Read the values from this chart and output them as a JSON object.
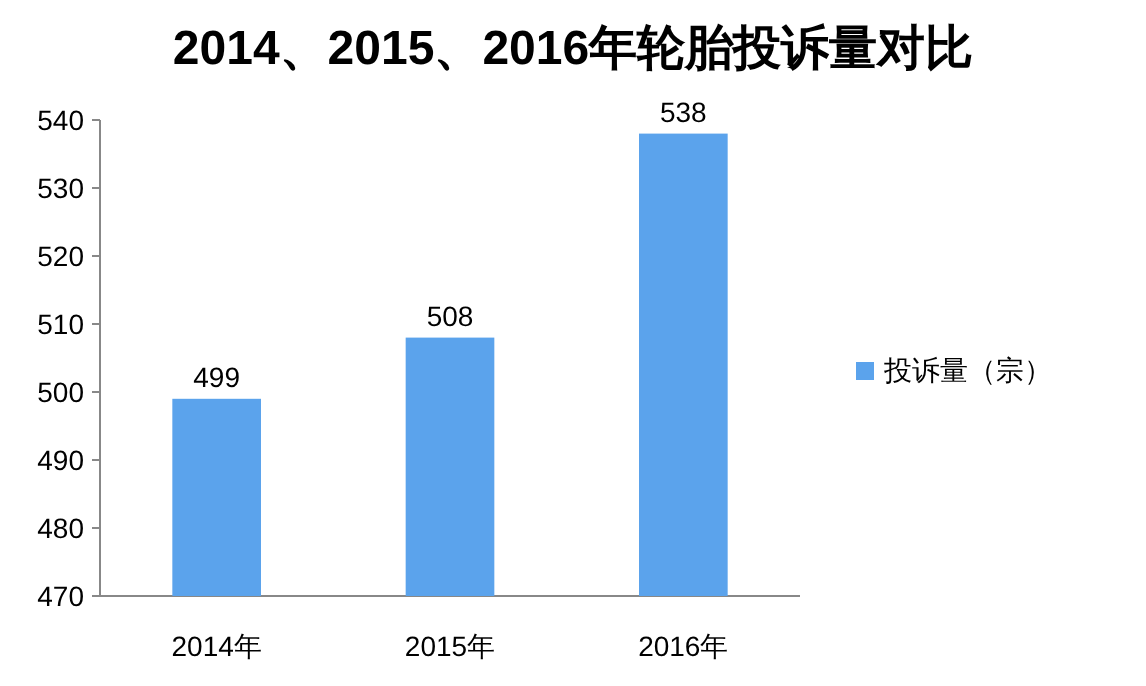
{
  "chart_data": {
    "type": "bar",
    "title": "2014、2015、2016年轮胎投诉量对比",
    "categories": [
      "2014年",
      "2015年",
      "2016年"
    ],
    "series": [
      {
        "name": "投诉量（宗）",
        "color": "#5ba3ec",
        "values": [
          499,
          508,
          538
        ]
      }
    ],
    "ylim": [
      470,
      540
    ],
    "yticks": [
      470,
      480,
      490,
      500,
      510,
      520,
      530,
      540
    ],
    "data_labels": true,
    "legend": "right",
    "grid": false
  }
}
